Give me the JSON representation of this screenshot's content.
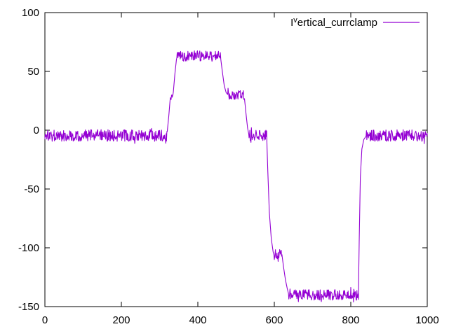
{
  "window": {
    "background": "#ffffff"
  },
  "chart_data": {
    "type": "line",
    "title": "",
    "legend": {
      "entries": [
        {
          "label_full": "I^vertical_currclamp",
          "label_prefix": "I",
          "label_superscript": "v",
          "label_rest": "ertical_currclamp",
          "color": "#9400d3"
        }
      ],
      "position": "top-right",
      "text_color": "#000000"
    },
    "axes": {
      "xlim": [
        0,
        1000
      ],
      "ylim": [
        -150,
        100
      ],
      "x_ticks": [
        "0",
        "200",
        "400",
        "600",
        "800",
        "1000"
      ],
      "x_tick_values": [
        0,
        200,
        400,
        600,
        800,
        1000
      ],
      "y_ticks": [
        "100",
        "50",
        "0",
        "-50",
        "-100",
        "-150"
      ],
      "y_tick_values": [
        100,
        50,
        0,
        -50,
        -100,
        -150
      ],
      "grid": false,
      "border_color": "#000000",
      "ticks_mirrored": true
    },
    "series": [
      {
        "name": "I^vertical_currclamp",
        "color": "#9400d3",
        "style": "noisy-line",
        "keypoints": [
          [
            0,
            -4.5
          ],
          [
            319,
            -4.5
          ],
          [
            324,
            12
          ],
          [
            328,
            28
          ],
          [
            335,
            29
          ],
          [
            340,
            48
          ],
          [
            344,
            60
          ],
          [
            346,
            63
          ],
          [
            459,
            63
          ],
          [
            464,
            50
          ],
          [
            469,
            38
          ],
          [
            474,
            32
          ],
          [
            479,
            30
          ],
          [
            521,
            30
          ],
          [
            526,
            14
          ],
          [
            530,
            2
          ],
          [
            534,
            -4.5
          ],
          [
            580,
            -4.5
          ],
          [
            583,
            -35
          ],
          [
            587,
            -70
          ],
          [
            592,
            -92
          ],
          [
            598,
            -106
          ],
          [
            620,
            -106
          ],
          [
            624,
            -116
          ],
          [
            629,
            -127
          ],
          [
            634,
            -135
          ],
          [
            638,
            -140
          ],
          [
            820,
            -140
          ],
          [
            822,
            -95
          ],
          [
            825,
            -40
          ],
          [
            829,
            -16
          ],
          [
            834,
            -8
          ],
          [
            841,
            -4.5
          ],
          [
            1000,
            -4.5
          ]
        ],
        "noise_windows": [
          [
            0,
            319,
            5.0
          ],
          [
            328,
            335,
            3.0
          ],
          [
            346,
            459,
            4.5
          ],
          [
            479,
            521,
            4.0
          ],
          [
            534,
            580,
            4.5
          ],
          [
            598,
            620,
            4.5
          ],
          [
            638,
            820,
            4.5
          ],
          [
            841,
            1000,
            5.0
          ]
        ],
        "samples": 1000,
        "seed": 1337,
        "plateau_summary": {
          "baseline_level": -4.5,
          "high_plateau": 63,
          "mid_plateau": 30,
          "neg_step": -106,
          "low_plateau": -140
        }
      }
    ]
  }
}
